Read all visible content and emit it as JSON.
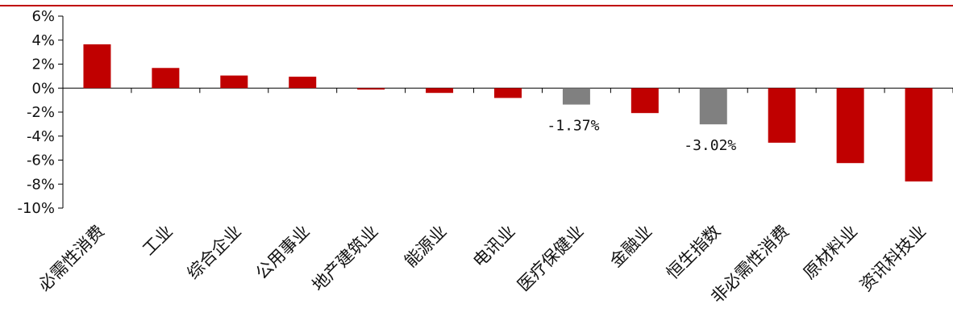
{
  "chart_data": {
    "type": "bar",
    "title": "",
    "xlabel": "",
    "ylabel": "",
    "categories": [
      "必需性消费",
      "工业",
      "综合企业",
      "公用事业",
      "地产建筑业",
      "能源业",
      "电讯业",
      "医疗保健业",
      "金融业",
      "恒生指数",
      "非必需性消费",
      "原材料业",
      "资讯科技业"
    ],
    "values": [
      3.65,
      1.68,
      1.05,
      0.95,
      -0.12,
      -0.4,
      -0.82,
      -1.37,
      -2.08,
      -3.02,
      -4.55,
      -6.25,
      -7.78
    ],
    "highlight": [
      false,
      false,
      false,
      false,
      false,
      false,
      false,
      true,
      false,
      true,
      false,
      false,
      false
    ],
    "data_labels": {
      "7": "-1.37%",
      "9": "-3.02%"
    },
    "y_ticks": [
      "6%",
      "4%",
      "2%",
      "0%",
      "-2%",
      "-4%",
      "-6%",
      "-8%",
      "-10%"
    ],
    "ylim": [
      -10,
      6
    ],
    "grid": false,
    "legend": "none",
    "colors": {
      "bar": "#c00000",
      "highlight_bar": "#808080",
      "axis": "#000000",
      "top_rule": "#c00000"
    }
  }
}
